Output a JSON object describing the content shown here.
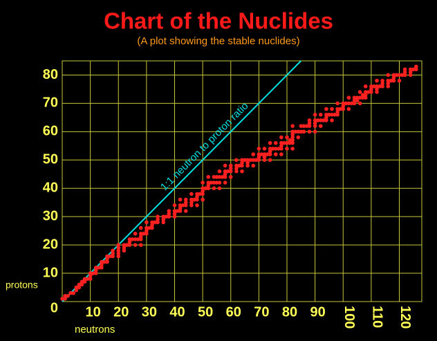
{
  "chart_data": {
    "type": "scatter",
    "title": "Chart of the Nuclides",
    "subtitle": "(A plot showing the stable nuclides)",
    "x_label": "neutrons",
    "y_label": "protons",
    "annotation": "1:1 neutron to proton ratio",
    "color": "#ff2020",
    "line_color": "#00e0e0",
    "grid": true,
    "xlim": [
      0,
      128
    ],
    "ylim": [
      0,
      85
    ],
    "xticks": [
      10,
      20,
      30,
      40,
      50,
      60,
      70,
      80,
      90,
      100,
      110,
      120
    ],
    "yticks": [
      0,
      10,
      20,
      30,
      40,
      50,
      60,
      70,
      80
    ],
    "x": [
      0,
      1,
      1,
      2,
      3,
      4,
      5,
      5,
      6,
      6,
      7,
      7,
      8,
      8,
      9,
      10,
      10,
      10,
      11,
      12,
      12,
      12,
      13,
      14,
      14,
      14,
      15,
      16,
      16,
      16,
      17,
      18,
      20,
      18,
      20,
      18,
      20,
      22,
      20,
      22,
      20,
      22,
      23,
      24,
      26,
      28,
      24,
      24,
      25,
      26,
      27,
      28,
      28,
      26,
      28,
      29,
      30,
      30,
      28,
      30,
      31,
      32,
      32,
      30,
      32,
      33,
      34,
      36,
      34,
      36,
      34,
      36,
      37,
      38,
      40,
      38,
      40,
      38,
      40,
      41,
      42,
      44,
      42,
      40,
      42,
      43,
      44,
      46,
      48,
      44,
      46,
      42,
      44,
      46,
      47,
      48,
      50,
      48,
      46,
      48,
      49,
      50,
      50,
      50,
      51,
      52,
      54,
      56,
      52,
      50,
      52,
      53,
      54,
      55,
      56,
      58,
      52,
      54,
      55,
      56,
      57,
      58,
      60,
      58,
      56,
      58,
      59,
      60,
      62,
      64,
      60,
      62,
      58,
      60,
      62,
      63,
      64,
      66,
      68,
      64,
      66,
      62,
      64,
      65,
      66,
      67,
      68,
      69,
      70,
      72,
      74,
      70,
      72,
      68,
      70,
      71,
      72,
      73,
      74,
      76,
      78,
      74,
      70,
      72,
      74,
      75,
      76,
      77,
      78,
      80,
      82,
      78,
      74,
      76,
      78,
      79,
      80,
      81,
      82,
      81,
      82,
      78,
      80,
      82,
      84,
      82,
      82,
      83,
      84,
      85,
      86,
      88,
      90,
      82,
      85,
      86,
      87,
      88,
      90,
      92,
      88,
      90,
      88,
      90,
      91,
      92,
      93,
      94,
      96,
      94,
      90,
      92,
      94,
      95,
      96,
      97,
      98,
      98,
      94,
      96,
      98,
      99,
      100,
      102,
      100,
      98,
      100,
      101,
      102,
      103,
      104,
      106,
      104,
      105,
      102,
      104,
      105,
      106,
      107,
      108,
      107,
      108,
      106,
      108,
      109,
      110,
      112,
      110,
      112,
      108,
      110,
      111,
      112,
      113,
      114,
      116,
      114,
      116,
      112,
      114,
      116,
      117,
      118,
      120,
      118,
      116,
      118,
      119,
      120,
      121,
      122,
      124,
      122,
      124,
      122,
      124,
      125,
      126,
      126
    ],
    "values": [
      1,
      1,
      2,
      2,
      3,
      3,
      4,
      5,
      5,
      6,
      6,
      7,
      7,
      8,
      8,
      8,
      9,
      10,
      10,
      10,
      11,
      12,
      12,
      12,
      13,
      14,
      14,
      14,
      15,
      16,
      16,
      16,
      16,
      17,
      17,
      18,
      18,
      18,
      19,
      19,
      20,
      20,
      20,
      20,
      20,
      20,
      21,
      22,
      22,
      22,
      22,
      22,
      23,
      24,
      24,
      24,
      24,
      25,
      26,
      26,
      26,
      26,
      27,
      28,
      28,
      28,
      28,
      28,
      29,
      29,
      30,
      30,
      30,
      30,
      30,
      31,
      31,
      32,
      32,
      32,
      32,
      32,
      33,
      34,
      34,
      34,
      34,
      34,
      34,
      35,
      35,
      36,
      36,
      36,
      36,
      36,
      36,
      37,
      38,
      38,
      38,
      38,
      39,
      40,
      40,
      40,
      40,
      40,
      41,
      42,
      42,
      42,
      42,
      42,
      42,
      42,
      44,
      44,
      44,
      44,
      44,
      44,
      44,
      45,
      46,
      46,
      46,
      46,
      46,
      46,
      47,
      47,
      48,
      48,
      48,
      48,
      48,
      48,
      48,
      49,
      49,
      50,
      50,
      50,
      50,
      50,
      50,
      50,
      50,
      50,
      50,
      51,
      51,
      52,
      52,
      52,
      52,
      52,
      52,
      52,
      52,
      53,
      54,
      54,
      54,
      54,
      54,
      54,
      54,
      54,
      54,
      55,
      56,
      56,
      56,
      56,
      56,
      56,
      56,
      57,
      57,
      58,
      58,
      58,
      58,
      59,
      60,
      60,
      60,
      60,
      60,
      60,
      60,
      62,
      62,
      62,
      62,
      62,
      62,
      62,
      63,
      63,
      64,
      64,
      64,
      64,
      64,
      64,
      64,
      65,
      66,
      66,
      66,
      66,
      66,
      66,
      66,
      67,
      68,
      68,
      68,
      68,
      68,
      68,
      69,
      70,
      70,
      70,
      70,
      70,
      70,
      70,
      71,
      71,
      72,
      72,
      72,
      72,
      72,
      72,
      73,
      73,
      74,
      74,
      74,
      74,
      74,
      75,
      75,
      76,
      76,
      76,
      76,
      76,
      76,
      76,
      77,
      77,
      78,
      78,
      78,
      78,
      78,
      78,
      79,
      80,
      80,
      80,
      80,
      80,
      80,
      80,
      81,
      81,
      82,
      82,
      82,
      82,
      83
    ]
  }
}
